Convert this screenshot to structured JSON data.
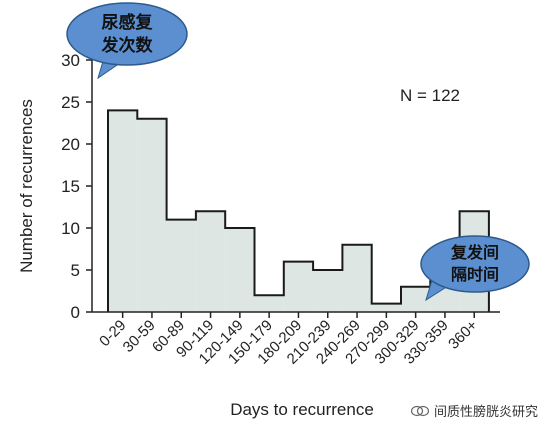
{
  "chart_data": {
    "type": "bar",
    "categories": [
      "0-29",
      "30-59",
      "60-89",
      "90-119",
      "120-149",
      "150-179",
      "180-209",
      "210-239",
      "240-269",
      "270-299",
      "300-329",
      "330-359",
      "360+"
    ],
    "values": [
      24,
      23,
      11,
      12,
      10,
      2,
      6,
      5,
      8,
      1,
      3,
      6,
      12
    ],
    "xlabel": "Days to recurrence",
    "ylabel": "Number of recurrences",
    "ylim": [
      0,
      30
    ],
    "yticks": [
      0,
      5,
      10,
      15,
      20,
      25,
      30
    ],
    "annotation": "N = 122",
    "grid": false,
    "bar_fill": "#dde6e3",
    "bar_stroke": "#1a1a1a"
  },
  "callouts": [
    {
      "line1": "尿感复",
      "line2": "发次数"
    },
    {
      "line1": "复发间",
      "line2": "隔时间"
    }
  ],
  "callout_color": "#5b8fcf",
  "watermark": "间质性膀胱炎研究"
}
